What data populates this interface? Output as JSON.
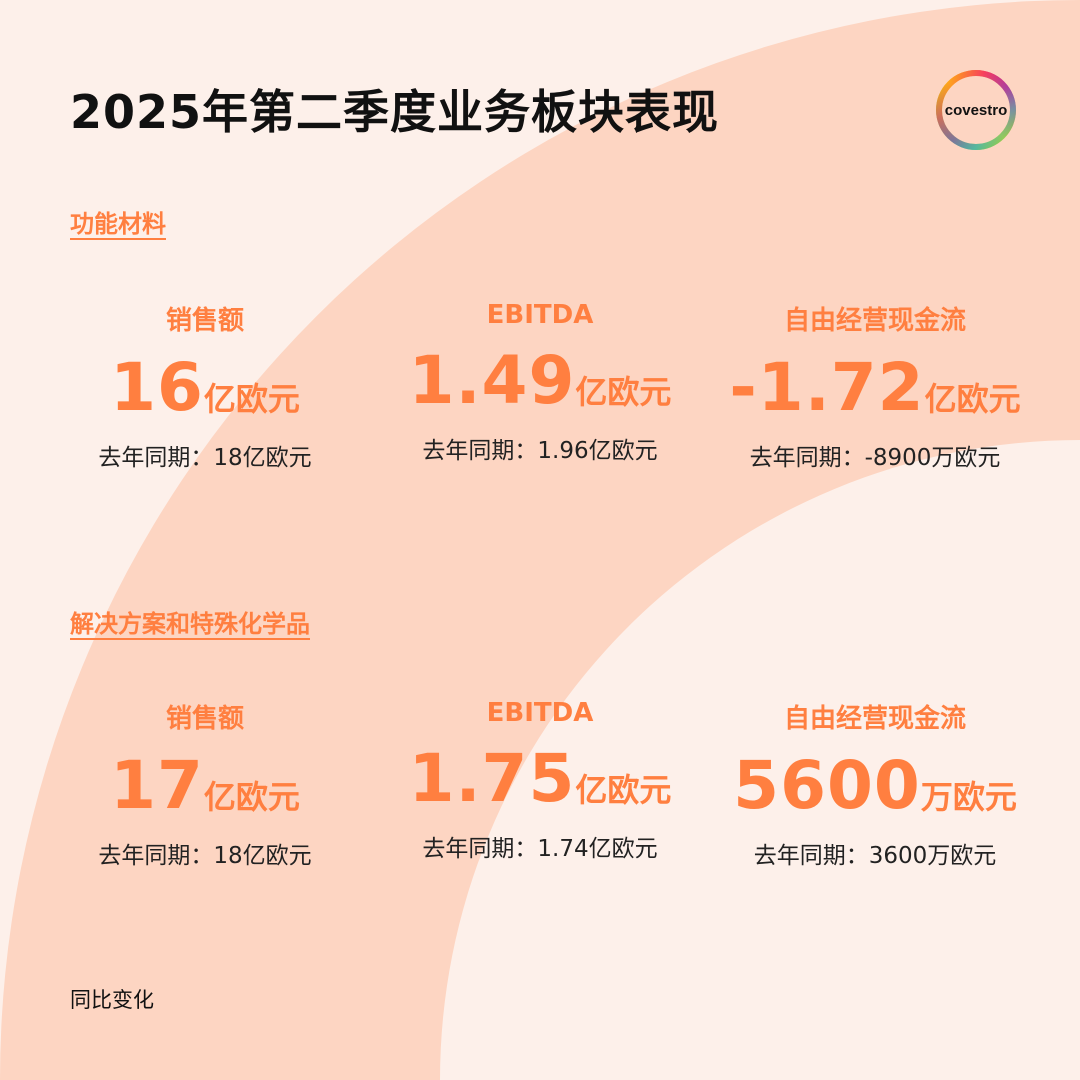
{
  "title": "2025年第二季度业务板块表现",
  "logo": {
    "text": "covestro"
  },
  "colors": {
    "background": "#fdf0ea",
    "arc": "#fdd5c2",
    "accent": "#ff7f40",
    "text": "#111111"
  },
  "segments": [
    {
      "name": "功能材料",
      "metrics": [
        {
          "label": "销售额",
          "value": "16",
          "unit": "亿欧元",
          "prior": "去年同期：18亿欧元"
        },
        {
          "label": "EBITDA",
          "value": "1.49",
          "unit": "亿欧元",
          "prior": "去年同期：1.96亿欧元"
        },
        {
          "label": "自由经营现金流",
          "value": "-1.72",
          "unit": "亿欧元",
          "prior": "去年同期：-8900万欧元"
        }
      ]
    },
    {
      "name": "解决方案和特殊化学品",
      "metrics": [
        {
          "label": "销售额",
          "value": "17",
          "unit": "亿欧元",
          "prior": "去年同期：18亿欧元"
        },
        {
          "label": "EBITDA",
          "value": "1.75",
          "unit": "亿欧元",
          "prior": "去年同期：1.74亿欧元"
        },
        {
          "label": "自由经营现金流",
          "value": "5600",
          "unit": "万欧元",
          "prior": "去年同期：3600万欧元"
        }
      ]
    }
  ],
  "footer": "同比变化"
}
